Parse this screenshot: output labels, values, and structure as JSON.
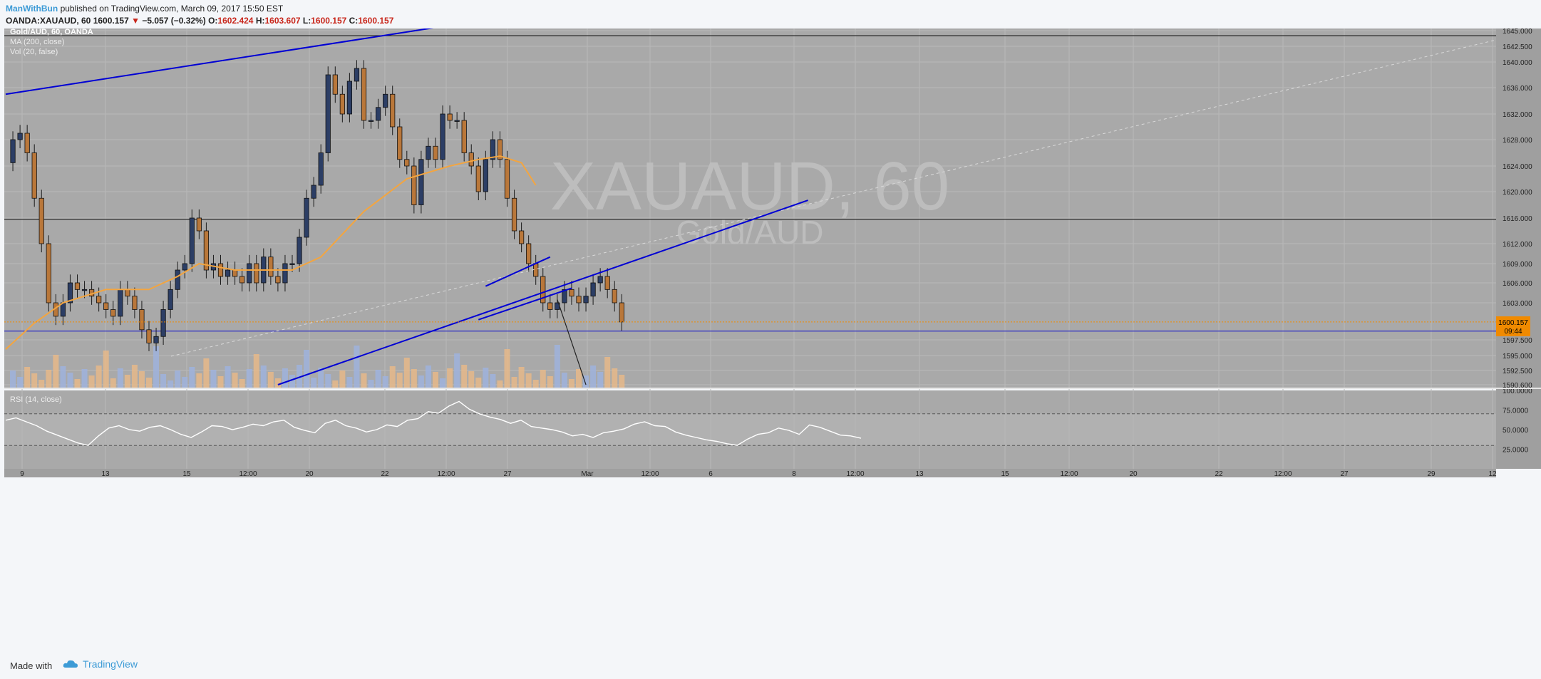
{
  "header": {
    "author": "ManWithBun",
    "published": "published on TradingView.com, March 09, 2017 15:50 EST",
    "symbol": "OANDA:XAUAUD, 60",
    "last": "1600.157",
    "change": "−5.057 (−0.32%)",
    "o_label": "O:",
    "o": "1602.424",
    "h_label": "H:",
    "h": "1603.607",
    "l_label": "L:",
    "l": "1600.157",
    "c_label": "C:",
    "c": "1600.157"
  },
  "legend": {
    "title": "Gold/AUD, 60, OANDA",
    "ma": "MA (200, close)",
    "vol": "Vol (20, false)",
    "rsi": "RSI (14, close)"
  },
  "watermark": {
    "symbol": "XAUAUD, 60",
    "name": "Gold/AUD"
  },
  "price_badge": {
    "value": "1600.157",
    "countdown": "09:44",
    "color": "#f08a00"
  },
  "colors": {
    "bg": "#a9a9a9",
    "trendline": "#0000d4",
    "ma": "#f3a540",
    "up_candle": "#2c3e65",
    "down_candle": "#b9773a",
    "rsi": "#ffffff"
  },
  "footer": {
    "made_with": "Made with",
    "brand": "TradingView",
    "icon": "tradingview-cloud-icon"
  },
  "chart_data": [
    {
      "type": "candlestick",
      "title": "Gold/AUD, 60, OANDA",
      "symbol": "XAUAUD",
      "timeframe": "60",
      "price_ticks": [
        1645.0,
        1642.5,
        1640.0,
        1636.0,
        1632.0,
        1628.0,
        1624.0,
        1620.0,
        1616.0,
        1612.0,
        1609.0,
        1606.0,
        1603.0,
        1597.5,
        1595.0,
        1592.5,
        1590.6
      ],
      "price_tick_labels": [
        "1645.000",
        "1642.500",
        "1640.000",
        "1636.000",
        "1632.000",
        "1628.000",
        "1624.000",
        "1620.000",
        "1616.000",
        "1612.000",
        "1609.000",
        "1606.000",
        "1603.000",
        "1597.500",
        "1595.000",
        "1592.500",
        "1590.600"
      ],
      "x_ticks": [
        "9",
        "13",
        "15",
        "12:00",
        "20",
        "22",
        "12:00",
        "27",
        "Mar",
        "12:00",
        "6",
        "8",
        "12:00",
        "13",
        "15",
        "12:00",
        "20",
        "22",
        "12:00",
        "27",
        "29",
        "12"
      ],
      "close_path": [
        [
          0,
          1624.5
        ],
        [
          1,
          1628
        ],
        [
          2,
          1629
        ],
        [
          3,
          1626
        ],
        [
          4,
          1619
        ],
        [
          5,
          1612
        ],
        [
          6,
          1603
        ],
        [
          7,
          1601
        ],
        [
          8,
          1603
        ],
        [
          9,
          1606
        ],
        [
          10,
          1605
        ],
        [
          11,
          1605
        ],
        [
          12,
          1604
        ],
        [
          13,
          1603
        ],
        [
          14,
          1602
        ],
        [
          15,
          1601
        ],
        [
          16,
          1605
        ],
        [
          17,
          1604
        ],
        [
          18,
          1602
        ],
        [
          19,
          1599
        ],
        [
          20,
          1597
        ],
        [
          21,
          1598
        ],
        [
          22,
          1602
        ],
        [
          23,
          1605
        ],
        [
          24,
          1608
        ],
        [
          25,
          1609
        ],
        [
          26,
          1616
        ],
        [
          27,
          1614
        ],
        [
          28,
          1608
        ],
        [
          29,
          1609
        ],
        [
          30,
          1607
        ],
        [
          31,
          1608
        ],
        [
          32,
          1607
        ],
        [
          33,
          1606
        ],
        [
          34,
          1609
        ],
        [
          35,
          1606
        ],
        [
          36,
          1610
        ],
        [
          37,
          1607
        ],
        [
          38,
          1606
        ],
        [
          39,
          1609
        ],
        [
          40,
          1609
        ],
        [
          41,
          1613
        ],
        [
          42,
          1619
        ],
        [
          43,
          1621
        ],
        [
          44,
          1626
        ],
        [
          45,
          1638
        ],
        [
          46,
          1635
        ],
        [
          47,
          1632
        ],
        [
          48,
          1637
        ],
        [
          49,
          1639
        ],
        [
          50,
          1631
        ],
        [
          51,
          1631
        ],
        [
          52,
          1633
        ],
        [
          53,
          1635
        ],
        [
          54,
          1630
        ],
        [
          55,
          1625
        ],
        [
          56,
          1624
        ],
        [
          57,
          1618
        ],
        [
          58,
          1625
        ],
        [
          59,
          1627
        ],
        [
          60,
          1625
        ],
        [
          61,
          1632
        ],
        [
          62,
          1631
        ],
        [
          63,
          1631
        ],
        [
          64,
          1626
        ],
        [
          65,
          1624
        ],
        [
          66,
          1620
        ],
        [
          67,
          1625
        ],
        [
          68,
          1628
        ],
        [
          69,
          1625
        ],
        [
          70,
          1619
        ],
        [
          71,
          1614
        ],
        [
          72,
          1612
        ],
        [
          73,
          1609
        ],
        [
          74,
          1607
        ],
        [
          75,
          1603
        ],
        [
          76,
          1602
        ],
        [
          77,
          1603
        ],
        [
          78,
          1605
        ],
        [
          79,
          1604
        ],
        [
          80,
          1603
        ],
        [
          81,
          1604
        ],
        [
          82,
          1606
        ],
        [
          83,
          1607
        ],
        [
          84,
          1605
        ],
        [
          85,
          1603
        ],
        [
          86,
          1600.157
        ]
      ],
      "ma_200_path": [
        [
          0,
          1596
        ],
        [
          4,
          1600
        ],
        [
          8,
          1603
        ],
        [
          14,
          1605
        ],
        [
          20,
          1605
        ],
        [
          24,
          1607
        ],
        [
          27,
          1609
        ],
        [
          32,
          1608
        ],
        [
          40,
          1608
        ],
        [
          44,
          1610
        ],
        [
          50,
          1617
        ],
        [
          56,
          1622
        ],
        [
          62,
          1624
        ],
        [
          66,
          1625
        ],
        [
          69,
          1625.5
        ],
        [
          72,
          1624.5
        ],
        [
          74,
          1621
        ]
      ],
      "trendlines": [
        {
          "from": [
            0,
            1635
          ],
          "to": [
            60,
            1645.5
          ]
        },
        {
          "from": [
            38,
            1590.6
          ],
          "to": [
            112,
            1618.7
          ]
        },
        {
          "from": [
            66,
            1600.5
          ],
          "to": [
            79,
            1605.2
          ]
        },
        {
          "from": [
            67,
            1605.5
          ],
          "to": [
            76,
            1610
          ]
        },
        {
          "from": [
            77,
            1603.5
          ],
          "to": [
            81,
            1590.6
          ]
        }
      ],
      "horizontal_levels": [
        1644.2,
        1615.8,
        1598.8
      ],
      "current_price": 1600.157
    },
    {
      "type": "line",
      "title": "RSI (14, close)",
      "y_ticks": [
        100,
        75,
        50,
        25
      ],
      "y_tick_labels": [
        "100.0000",
        "75.0000",
        "50.0000",
        "25.0000"
      ],
      "levels": [
        70,
        30
      ],
      "series": [
        {
          "name": "RSI (14, close)",
          "values": [
            62,
            65,
            60,
            55,
            48,
            43,
            38,
            33,
            30,
            42,
            52,
            55,
            50,
            48,
            53,
            55,
            50,
            44,
            40,
            47,
            55,
            54,
            50,
            53,
            57,
            55,
            60,
            62,
            53,
            49,
            46,
            58,
            62,
            55,
            52,
            47,
            50,
            56,
            54,
            62,
            64,
            73,
            71,
            80,
            86,
            76,
            70,
            66,
            63,
            58,
            62,
            54,
            52,
            50,
            47,
            42,
            44,
            40,
            46,
            48,
            51,
            57,
            60,
            55,
            54,
            47,
            43,
            40,
            37,
            35,
            32,
            30,
            38,
            44,
            46,
            52,
            49,
            44,
            56,
            53,
            48,
            43,
            42,
            39
          ]
        }
      ]
    }
  ]
}
